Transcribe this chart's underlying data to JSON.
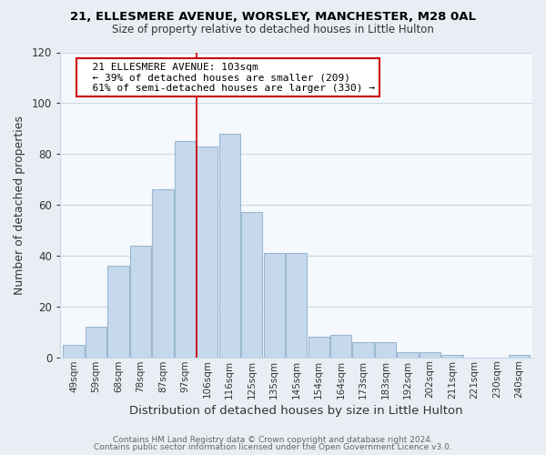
{
  "title_line1": "21, ELLESMERE AVENUE, WORSLEY, MANCHESTER, M28 0AL",
  "title_line2": "Size of property relative to detached houses in Little Hulton",
  "xlabel": "Distribution of detached houses by size in Little Hulton",
  "ylabel": "Number of detached properties",
  "bar_labels": [
    "49sqm",
    "59sqm",
    "68sqm",
    "78sqm",
    "87sqm",
    "97sqm",
    "106sqm",
    "116sqm",
    "125sqm",
    "135sqm",
    "145sqm",
    "154sqm",
    "164sqm",
    "173sqm",
    "183sqm",
    "192sqm",
    "202sqm",
    "211sqm",
    "221sqm",
    "230sqm",
    "240sqm"
  ],
  "bar_heights": [
    5,
    12,
    36,
    44,
    66,
    85,
    83,
    88,
    57,
    41,
    41,
    8,
    9,
    6,
    6,
    2,
    2,
    1,
    0,
    0,
    1
  ],
  "bar_color": "#c5d8ec",
  "highlight_bar_index": 5,
  "red_line_after_index": 5,
  "highlight_edge_color": "#cc0000",
  "normal_edge_color": "#9ab8d0",
  "ylim": [
    0,
    120
  ],
  "yticks": [
    0,
    20,
    40,
    60,
    80,
    100,
    120
  ],
  "annotation_title": "21 ELLESMERE AVENUE: 103sqm",
  "annotation_line1": "← 39% of detached houses are smaller (209)",
  "annotation_line2": "61% of semi-detached houses are larger (330) →",
  "annotation_box_color": "#ffffff",
  "annotation_box_edge": "#cc0000",
  "footer_line1": "Contains HM Land Registry data © Crown copyright and database right 2024.",
  "footer_line2": "Contains public sector information licensed under the Open Government Licence v3.0.",
  "background_color": "#e8eef4",
  "plot_background": "#f5f8fc",
  "grid_color": "#c8d8e8"
}
